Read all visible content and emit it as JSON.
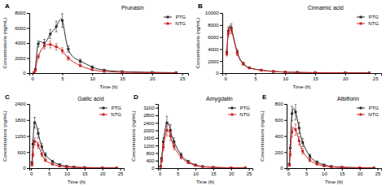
{
  "chart_data": [
    {
      "type": "line",
      "title": "Prunasin",
      "annotations": [
        "A"
      ],
      "xlabel": "Time (h)",
      "ylabel": "Concentrations (ng/mL)",
      "xlim": [
        -0.5,
        26
      ],
      "xticks": [
        0,
        5,
        10,
        15,
        20,
        25
      ],
      "ylim": [
        0,
        8000
      ],
      "yticks": [
        0,
        2000,
        4000,
        6000,
        8000
      ],
      "grid": false,
      "legend": "upper right",
      "x": [
        0.25,
        0.5,
        1,
        2,
        3,
        4,
        5,
        6,
        8,
        10,
        12,
        15,
        20,
        24
      ],
      "series": [
        {
          "name": "PTG",
          "color": "#2b2b2b",
          "marker": "square",
          "values": [
            80,
            500,
            3900,
            4000,
            5200,
            6200,
            7000,
            3200,
            1600,
            800,
            400,
            200,
            100,
            60
          ],
          "errors": [
            30,
            100,
            400,
            500,
            600,
            700,
            900,
            400,
            250,
            150,
            80,
            50,
            25,
            15
          ]
        },
        {
          "name": "NTG",
          "color": "#cc2222",
          "marker": "square",
          "values": [
            60,
            350,
            2200,
            3600,
            3800,
            3500,
            3000,
            2000,
            1000,
            450,
            220,
            110,
            60,
            35
          ],
          "errors": [
            20,
            80,
            300,
            400,
            450,
            420,
            380,
            280,
            150,
            80,
            45,
            28,
            15,
            10
          ]
        }
      ]
    },
    {
      "type": "line",
      "title": "Cinnamic acid",
      "annotations": [
        "B"
      ],
      "xlabel": "Time (h)",
      "ylabel": "Concentrations (ng/mL)",
      "xlim": [
        -0.5,
        26
      ],
      "xticks": [
        0,
        5,
        10,
        15,
        20,
        25
      ],
      "ylim": [
        0,
        10000
      ],
      "yticks": [
        0,
        2000,
        4000,
        6000,
        8000,
        10000
      ],
      "grid": false,
      "legend": "upper right",
      "x": [
        0.25,
        0.5,
        1,
        2,
        3,
        4,
        6,
        8,
        10,
        12,
        15,
        20,
        24
      ],
      "series": [
        {
          "name": "PTG",
          "color": "#2b2b2b",
          "marker": "square",
          "values": [
            3500,
            7000,
            7500,
            3500,
            1600,
            900,
            500,
            280,
            170,
            120,
            80,
            60,
            45
          ],
          "errors": [
            400,
            600,
            700,
            400,
            200,
            120,
            80,
            50,
            35,
            25,
            18,
            12,
            8
          ]
        },
        {
          "name": "NTG",
          "color": "#cc2222",
          "marker": "square",
          "values": [
            3200,
            6600,
            7200,
            3300,
            1500,
            850,
            470,
            260,
            160,
            110,
            75,
            55,
            40
          ],
          "errors": [
            350,
            550,
            650,
            370,
            180,
            110,
            70,
            45,
            30,
            22,
            15,
            10,
            7
          ]
        }
      ]
    },
    {
      "type": "line",
      "title": "Gallic acid",
      "annotations": [
        "C"
      ],
      "xlabel": "Time (h)",
      "ylabel": "Concentrations (ng/mL)",
      "xlim": [
        -0.5,
        26
      ],
      "xticks": [
        0,
        5,
        10,
        15,
        20,
        25
      ],
      "ylim": [
        0,
        2400
      ],
      "yticks": [
        0,
        600,
        1200,
        1800,
        2400
      ],
      "grid": false,
      "legend": "upper right",
      "x": [
        0.25,
        0.5,
        1,
        2,
        3,
        4,
        6,
        8,
        10,
        12,
        15,
        20,
        24
      ],
      "series": [
        {
          "name": "PTG",
          "color": "#2b2b2b",
          "marker": "square",
          "values": [
            200,
            900,
            1700,
            1300,
            800,
            500,
            250,
            130,
            70,
            45,
            25,
            15,
            8
          ],
          "errors": [
            50,
            130,
            200,
            180,
            120,
            80,
            45,
            25,
            15,
            10,
            6,
            4,
            2
          ]
        },
        {
          "name": "NTG",
          "color": "#cc2222",
          "marker": "square",
          "values": [
            120,
            500,
            1000,
            850,
            520,
            300,
            150,
            75,
            40,
            25,
            15,
            8,
            5
          ],
          "errors": [
            30,
            80,
            130,
            110,
            80,
            55,
            30,
            18,
            10,
            7,
            4,
            2,
            1
          ]
        }
      ]
    },
    {
      "type": "line",
      "title": "Amygdalin",
      "annotations": [
        "D"
      ],
      "xlabel": "Time (h)",
      "ylabel": "Concentrations (ng/mL)",
      "xlim": [
        -0.5,
        26
      ],
      "xticks": [
        0,
        5,
        10,
        15,
        20,
        25
      ],
      "ylim": [
        0,
        3400
      ],
      "yticks": [
        0,
        400,
        800,
        1200,
        1600,
        2000,
        2400,
        2800,
        3200
      ],
      "grid": false,
      "legend": "upper right",
      "x": [
        0.25,
        0.5,
        1,
        2,
        3,
        4,
        6,
        8,
        10,
        12,
        15,
        20,
        24
      ],
      "series": [
        {
          "name": "PTG",
          "color": "#2b2b2b",
          "marker": "square",
          "values": [
            100,
            500,
            1400,
            2400,
            2000,
            1400,
            700,
            350,
            170,
            90,
            45,
            20,
            10
          ],
          "errors": [
            20,
            80,
            200,
            350,
            300,
            200,
            110,
            65,
            35,
            20,
            10,
            5,
            3
          ]
        },
        {
          "name": "NTG",
          "color": "#cc2222",
          "marker": "square",
          "values": [
            80,
            400,
            1100,
            2000,
            1700,
            1150,
            580,
            290,
            140,
            75,
            38,
            18,
            8
          ],
          "errors": [
            15,
            65,
            170,
            290,
            250,
            170,
            90,
            55,
            28,
            16,
            8,
            4,
            2
          ]
        }
      ]
    },
    {
      "type": "line",
      "title": "Albiflorin",
      "annotations": [
        "E"
      ],
      "xlabel": "Time (h)",
      "ylabel": "Concentrations (ng/mL)",
      "xlim": [
        -0.5,
        26
      ],
      "xticks": [
        0,
        5,
        10,
        15,
        20,
        25
      ],
      "ylim": [
        0,
        800
      ],
      "yticks": [
        0,
        200,
        400,
        600,
        800
      ],
      "grid": false,
      "legend": "upper right",
      "x": [
        0.25,
        0.5,
        1,
        2,
        3,
        4,
        6,
        8,
        10,
        12,
        15,
        20,
        24
      ],
      "series": [
        {
          "name": "PTG",
          "color": "#2b2b2b",
          "marker": "square",
          "values": [
            50,
            250,
            680,
            700,
            500,
            320,
            150,
            75,
            40,
            22,
            12,
            6,
            3
          ],
          "errors": [
            10,
            40,
            90,
            100,
            70,
            50,
            25,
            15,
            8,
            5,
            3,
            2,
            1
          ]
        },
        {
          "name": "NTG",
          "color": "#cc2222",
          "marker": "square",
          "values": [
            35,
            170,
            450,
            480,
            340,
            210,
            100,
            50,
            27,
            15,
            8,
            4,
            2
          ],
          "errors": [
            8,
            30,
            65,
            70,
            50,
            35,
            18,
            10,
            6,
            4,
            2,
            1,
            0.5
          ]
        }
      ]
    }
  ]
}
